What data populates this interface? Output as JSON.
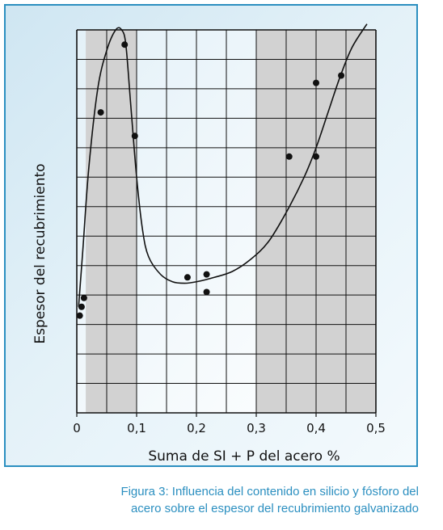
{
  "chart_data": {
    "type": "scatter",
    "xlabel": "Suma de SI + P del acero %",
    "ylabel": "Espesor del recubrimiento",
    "xlim": [
      0,
      0.5
    ],
    "ylim": [
      0,
      13
    ],
    "x_ticks": [
      "0",
      "0,1",
      "0,2",
      "0,3",
      "0,4",
      "0,5"
    ],
    "x_tick_values": [
      0,
      0.1,
      0.2,
      0.3,
      0.4,
      0.5
    ],
    "grid": true,
    "shaded_x_ranges": [
      [
        0.015,
        0.1
      ],
      [
        0.3,
        0.5
      ]
    ],
    "points": [
      {
        "x": 0.005,
        "y": 3.3
      },
      {
        "x": 0.008,
        "y": 3.6
      },
      {
        "x": 0.012,
        "y": 3.9
      },
      {
        "x": 0.04,
        "y": 10.2
      },
      {
        "x": 0.08,
        "y": 12.5
      },
      {
        "x": 0.097,
        "y": 9.4
      },
      {
        "x": 0.185,
        "y": 4.6
      },
      {
        "x": 0.217,
        "y": 4.7
      },
      {
        "x": 0.217,
        "y": 4.1
      },
      {
        "x": 0.355,
        "y": 8.7
      },
      {
        "x": 0.4,
        "y": 8.7
      },
      {
        "x": 0.4,
        "y": 11.2
      },
      {
        "x": 0.442,
        "y": 11.45
      }
    ],
    "curve": {
      "x": [
        0.003,
        0.01,
        0.02,
        0.035,
        0.05,
        0.065,
        0.075,
        0.082,
        0.09,
        0.1,
        0.11,
        0.12,
        0.14,
        0.16,
        0.18,
        0.2,
        0.23,
        0.26,
        0.29,
        0.32,
        0.35,
        0.38,
        0.4,
        0.42,
        0.44,
        0.46,
        0.485
      ],
      "y": [
        3.6,
        5.5,
        8.3,
        11.0,
        12.3,
        13.0,
        13.0,
        12.5,
        10.5,
        8.0,
        6.2,
        5.3,
        4.7,
        4.45,
        4.4,
        4.45,
        4.6,
        4.8,
        5.2,
        5.8,
        6.8,
        8.0,
        9.0,
        10.2,
        11.4,
        12.4,
        13.2
      ]
    },
    "colors": {
      "frame_border": "#2b8fc0",
      "shade": "#d2d2d2",
      "caption": "#2b8fc0"
    }
  },
  "caption": {
    "line1": "Figura 3: Influencia del contenido en silicio y fósforo del",
    "line2": "acero sobre el espesor del recubrimiento galvanizado"
  }
}
